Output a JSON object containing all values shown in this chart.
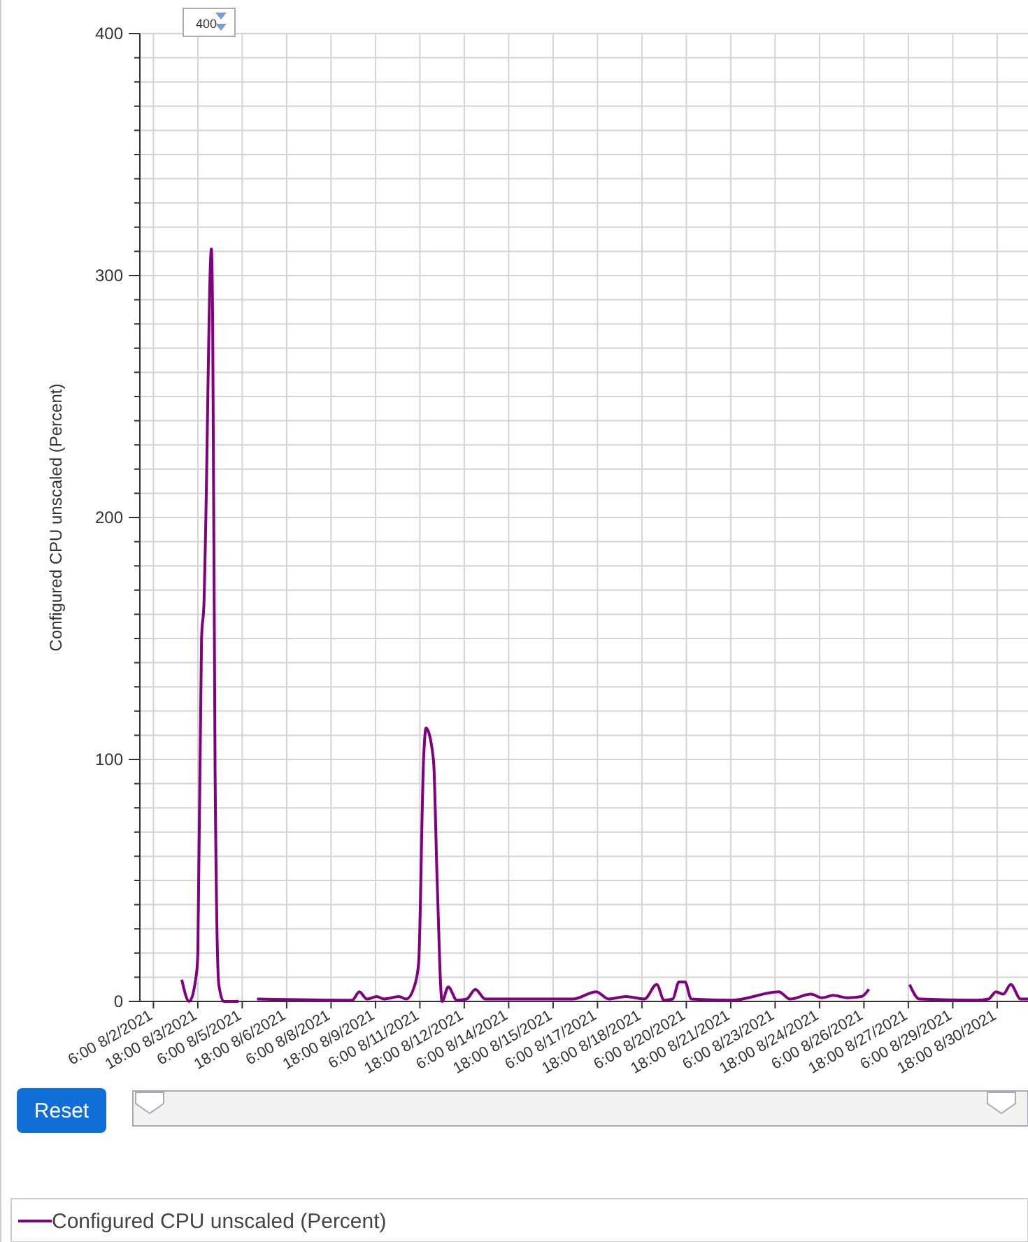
{
  "chart_data": {
    "type": "line",
    "ylabel": "Configured CPU unscaled (Percent)",
    "legend": "bottom",
    "grid": true,
    "marker": "none",
    "line_style": "solid",
    "xlim": [
      "2021-08-01T19:00",
      "2021-08-31T19:00"
    ],
    "xticks": [
      {
        "value": "2021-08-02T06:00",
        "label": "6:00 8/2/2021"
      },
      {
        "value": "2021-08-03T18:00",
        "label": "18:00 8/3/2021"
      },
      {
        "value": "2021-08-05T06:00",
        "label": "6:00 8/5/2021"
      },
      {
        "value": "2021-08-06T18:00",
        "label": "18:00 8/6/2021"
      },
      {
        "value": "2021-08-08T06:00",
        "label": "6:00 8/8/2021"
      },
      {
        "value": "2021-08-09T18:00",
        "label": "18:00 8/9/2021"
      },
      {
        "value": "2021-08-11T06:00",
        "label": "6:00 8/11/2021"
      },
      {
        "value": "2021-08-12T18:00",
        "label": "18:00 8/12/2021"
      },
      {
        "value": "2021-08-14T06:00",
        "label": "6:00 8/14/2021"
      },
      {
        "value": "2021-08-15T18:00",
        "label": "18:00 8/15/2021"
      },
      {
        "value": "2021-08-17T06:00",
        "label": "6:00 8/17/2021"
      },
      {
        "value": "2021-08-18T18:00",
        "label": "18:00 8/18/2021"
      },
      {
        "value": "2021-08-20T06:00",
        "label": "6:00 8/20/2021"
      },
      {
        "value": "2021-08-21T18:00",
        "label": "18:00 8/21/2021"
      },
      {
        "value": "2021-08-23T06:00",
        "label": "6:00 8/23/2021"
      },
      {
        "value": "2021-08-24T18:00",
        "label": "18:00 8/24/2021"
      },
      {
        "value": "2021-08-26T06:00",
        "label": "6:00 8/26/2021"
      },
      {
        "value": "2021-08-27T18:00",
        "label": "18:00 8/27/2021"
      },
      {
        "value": "2021-08-29T06:00",
        "label": "6:00 8/29/2021"
      },
      {
        "value": "2021-08-30T18:00",
        "label": "18:00 8/30/2021"
      }
    ],
    "ylim": [
      0,
      400
    ],
    "yticks": [
      0,
      {
        "value": 10,
        "label": null
      },
      {
        "value": 20,
        "label": null
      },
      {
        "value": 30,
        "label": null
      },
      {
        "value": 40,
        "label": null
      },
      {
        "value": 50,
        "label": null
      },
      {
        "value": 60,
        "label": null
      },
      {
        "value": 70,
        "label": null
      },
      {
        "value": 80,
        "label": null
      },
      {
        "value": 90,
        "label": null
      },
      100,
      {
        "value": 110,
        "label": null
      },
      {
        "value": 120,
        "label": null
      },
      {
        "value": 130,
        "label": null
      },
      {
        "value": 140,
        "label": null
      },
      {
        "value": 150,
        "label": null
      },
      {
        "value": 160,
        "label": null
      },
      {
        "value": 170,
        "label": null
      },
      {
        "value": 180,
        "label": null
      },
      {
        "value": 190,
        "label": null
      },
      200,
      {
        "value": 210,
        "label": null
      },
      {
        "value": 220,
        "label": null
      },
      {
        "value": 230,
        "label": null
      },
      {
        "value": 240,
        "label": null
      },
      {
        "value": 250,
        "label": null
      },
      {
        "value": 260,
        "label": null
      },
      {
        "value": 270,
        "label": null
      },
      {
        "value": 280,
        "label": null
      },
      {
        "value": 290,
        "label": null
      },
      300,
      {
        "value": 310,
        "label": null
      },
      {
        "value": 320,
        "label": null
      },
      {
        "value": 330,
        "label": null
      },
      {
        "value": 340,
        "label": null
      },
      {
        "value": 350,
        "label": null
      },
      {
        "value": 360,
        "label": null
      },
      {
        "value": 370,
        "label": null
      },
      {
        "value": 380,
        "label": null
      },
      {
        "value": 390,
        "label": null
      },
      400
    ],
    "annotations": [
      "400",
      "Reset"
    ],
    "series": [
      {
        "name": "Configured CPU unscaled (Percent)",
        "color": "#800080",
        "x": [
          "2021-08-03T05:00",
          "2021-08-03T11:00",
          "2021-08-03T17:00",
          "2021-08-03T18:00",
          "2021-08-03T21:00",
          "2021-08-03T23:00",
          "2021-08-04T00:00",
          "2021-08-04T05:00",
          "2021-08-04T06:00",
          "2021-08-04T08:00",
          "2021-08-04T11:00",
          "2021-08-04T15:00",
          "2021-08-05T03:00",
          "2021-08-05T10:00",
          "2021-08-05T18:00",
          "2021-08-08T23:00",
          "2021-08-09T05:00",
          "2021-08-09T11:00",
          "2021-08-09T19:00",
          "2021-08-10T01:00",
          "2021-08-10T13:00",
          "2021-08-10T19:00",
          "2021-08-11T02:00",
          "2021-08-11T05:00",
          "2021-08-11T09:00",
          "2021-08-11T11:00",
          "2021-08-11T17:00",
          "2021-08-11T20:00",
          "2021-08-12T00:00",
          "2021-08-12T05:00",
          "2021-08-12T12:00",
          "2021-08-12T20:00",
          "2021-08-13T03:00",
          "2021-08-13T11:00",
          "2021-08-15T04:00",
          "2021-08-16T10:00",
          "2021-08-17T05:00",
          "2021-08-17T15:00",
          "2021-08-18T05:00",
          "2021-08-18T20:00",
          "2021-08-19T06:00",
          "2021-08-19T12:00",
          "2021-08-19T19:00",
          "2021-08-20T00:00",
          "2021-08-20T05:00",
          "2021-08-20T10:00",
          "2021-08-21T19:00",
          "2021-08-23T09:00",
          "2021-08-23T18:00",
          "2021-08-24T11:00",
          "2021-08-24T20:00",
          "2021-08-25T05:00",
          "2021-08-25T17:00",
          "2021-08-26T04:00",
          "2021-08-26T10:00",
          "2021-08-27T03:00",
          "2021-08-27T19:00",
          "2021-08-28T03:00",
          "2021-08-30T02:00",
          "2021-08-30T11:00",
          "2021-08-30T17:00",
          "2021-08-30T23:00",
          "2021-08-31T05:00",
          "2021-08-31T13:00",
          "2021-08-31T19:00"
        ],
        "values": [
          9,
          0,
          12,
          20,
          150,
          165,
          187,
          311,
          283,
          94,
          7,
          0,
          0,
          null,
          1,
          0.5,
          4,
          1,
          2,
          1,
          2,
          1,
          7,
          16,
          100,
          113,
          100,
          50,
          0,
          6,
          0.5,
          1,
          5,
          1,
          1,
          1,
          4,
          1,
          2,
          1,
          7,
          0.5,
          1,
          8,
          8,
          1,
          0.5,
          4,
          1,
          3,
          1.5,
          2.5,
          1.5,
          2,
          5,
          null,
          7,
          1,
          0.5,
          1,
          4,
          3,
          7,
          1,
          1
        ]
      }
    ]
  }
}
